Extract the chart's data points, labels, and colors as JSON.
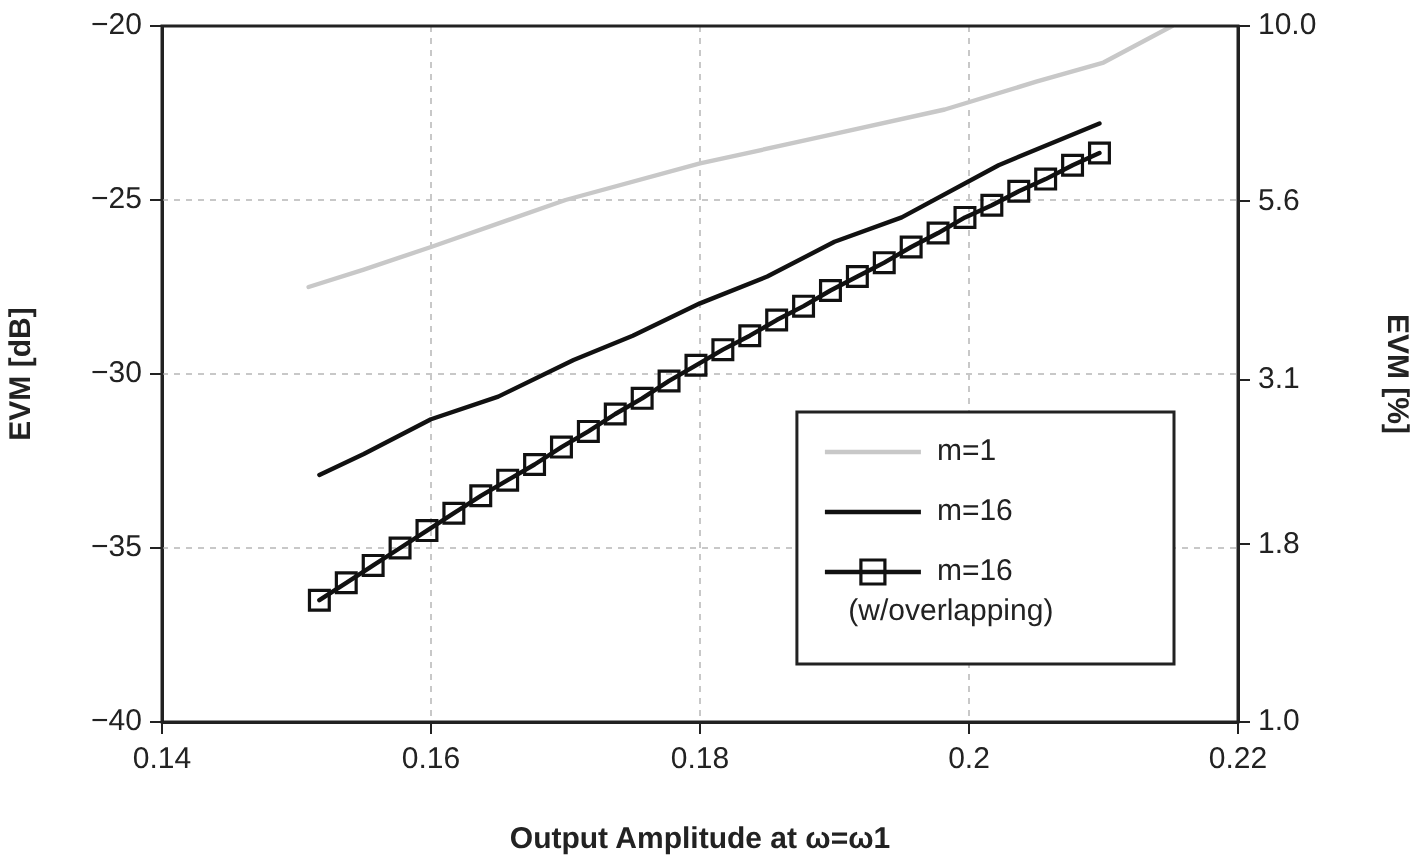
{
  "chart_data": {
    "type": "line",
    "xlabel": "Output Amplitude at ω=ω1",
    "ylabel": "EVM [dB]",
    "y2label": "EVM [%]",
    "xlim": [
      0.14,
      0.22
    ],
    "xticks": [
      0.14,
      0.16,
      0.18,
      0.2,
      0.22
    ],
    "ylim": [
      -40,
      -20
    ],
    "yticks": [
      {
        "value": -40,
        "label": "−40"
      },
      {
        "value": -35,
        "label": "−35"
      },
      {
        "value": -30,
        "label": "−30"
      },
      {
        "value": -25,
        "label": "−25"
      },
      {
        "value": -20,
        "label": "−20"
      }
    ],
    "y2lim": [
      1,
      10
    ],
    "y2ticks": [
      {
        "value": 1,
        "label": "1.0"
      },
      1.8,
      3.1,
      5.6,
      {
        "value": 10,
        "label": "10.0"
      }
    ],
    "log": "y2",
    "grid": true,
    "legend": "bottom right",
    "line_style": "solid",
    "series": [
      {
        "name": "m=1",
        "color": "#c8c8c8",
        "marker": "none",
        "x": [
          0.1509,
          0.155,
          0.16,
          0.17,
          0.18,
          0.19,
          0.1982,
          0.205,
          0.21,
          0.2151
        ],
        "values": [
          -27.5,
          -27.0,
          -26.35,
          -25.0,
          -23.95,
          -23.1,
          -22.4,
          -21.6,
          -21.05,
          -20.0
        ]
      },
      {
        "name": "m=16",
        "color": "#111111",
        "marker": "none",
        "x": [
          0.1517,
          0.155,
          0.16,
          0.165,
          0.1706,
          0.175,
          0.18,
          0.185,
          0.19,
          0.195,
          0.2022,
          0.2097
        ],
        "values": [
          -32.9,
          -32.3,
          -31.3,
          -30.65,
          -29.6,
          -28.9,
          -27.97,
          -27.2,
          -26.2,
          -25.5,
          -24.0,
          -22.8
        ]
      },
      {
        "name": "m=16 (w/overlapping)",
        "color": "#111111",
        "marker": "square",
        "x": [
          0.1517,
          0.1537,
          0.1557,
          0.1577,
          0.1597,
          0.1617,
          0.1637,
          0.1657,
          0.1677,
          0.1697,
          0.1717,
          0.1737,
          0.1757,
          0.1777,
          0.1797,
          0.1817,
          0.1837,
          0.1857,
          0.1877,
          0.1897,
          0.1917,
          0.1937,
          0.1957,
          0.1977,
          0.1997,
          0.2017,
          0.2037,
          0.2057,
          0.2077,
          0.2097
        ],
        "values": [
          -36.5,
          -36.0,
          -35.5,
          -35.0,
          -34.5,
          -34.0,
          -33.5,
          -33.05,
          -32.6,
          -32.1,
          -31.65,
          -31.15,
          -30.7,
          -30.2,
          -29.75,
          -29.3,
          -28.9,
          -28.45,
          -28.05,
          -27.6,
          -27.2,
          -26.8,
          -26.35,
          -25.95,
          -25.5,
          -25.15,
          -24.75,
          -24.4,
          -24.0,
          -23.65
        ]
      }
    ]
  }
}
